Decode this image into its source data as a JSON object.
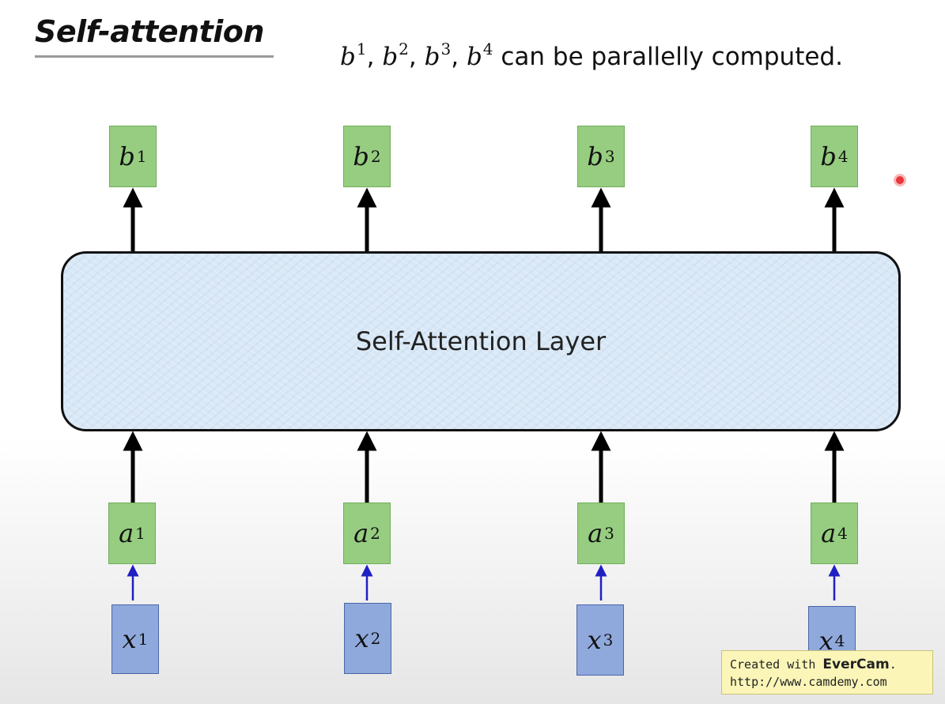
{
  "title": "Self-attention",
  "subtitle": {
    "items": [
      {
        "base": "b",
        "sup": "1"
      },
      {
        "base": "b",
        "sup": "2"
      },
      {
        "base": "b",
        "sup": "3"
      },
      {
        "base": "b",
        "sup": "4"
      }
    ],
    "separator": ", ",
    "text": " can be parallelly computed."
  },
  "layer_label": "Self-Attention Layer",
  "outputs": [
    {
      "base": "b",
      "sup": "1"
    },
    {
      "base": "b",
      "sup": "2"
    },
    {
      "base": "b",
      "sup": "3"
    },
    {
      "base": "b",
      "sup": "4"
    }
  ],
  "inputs": [
    {
      "base": "a",
      "sup": "1"
    },
    {
      "base": "a",
      "sup": "2"
    },
    {
      "base": "a",
      "sup": "3"
    },
    {
      "base": "a",
      "sup": "4"
    }
  ],
  "raw_inputs": [
    {
      "base": "x",
      "sup": "1"
    },
    {
      "base": "x",
      "sup": "2"
    },
    {
      "base": "x",
      "sup": "3"
    },
    {
      "base": "x",
      "sup": "4"
    }
  ],
  "watermark": {
    "prefix": "Created with ",
    "brand": "EverCam",
    "suffix": ".",
    "url": "http://www.camdemy.com"
  },
  "colors": {
    "green_box": "#96cd80",
    "blue_box": "#90a9dc",
    "layer_fill": "#d9e8f6",
    "thick_arrow": "#000000",
    "thin_arrow": "#1f1fc4"
  }
}
